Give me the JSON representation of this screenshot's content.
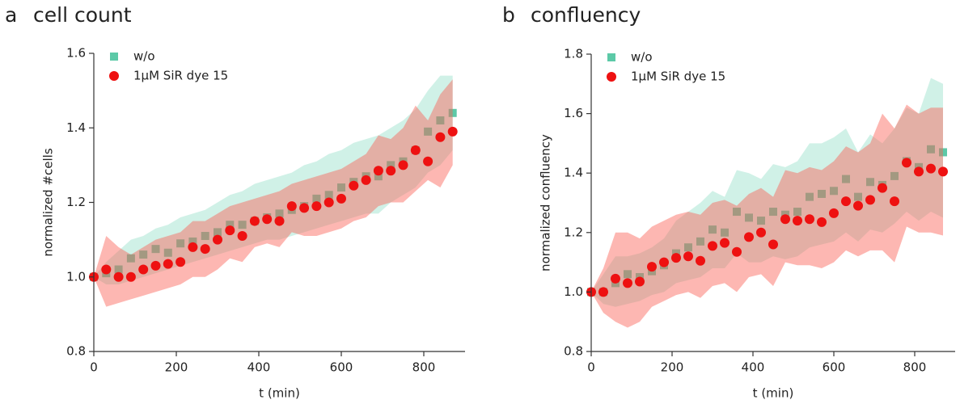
{
  "chart_data": [
    {
      "type": "scatter",
      "label": "a",
      "title": "cell count",
      "xlabel": "t (min)",
      "ylabel": "normalized #cells",
      "xlim": [
        0,
        900
      ],
      "xticks": [
        0,
        200,
        400,
        600,
        800
      ],
      "ylim": [
        0.8,
        1.6
      ],
      "yticks": [
        0.8,
        {
          "value": 1,
          "label": "1.0"
        },
        1.2,
        1.4,
        1.6
      ],
      "legend": "top-left",
      "x": [
        0,
        30,
        60,
        90,
        120,
        150,
        180,
        210,
        240,
        270,
        300,
        330,
        360,
        390,
        420,
        450,
        480,
        510,
        540,
        570,
        600,
        630,
        660,
        690,
        720,
        750,
        780,
        810,
        840,
        870
      ],
      "series": [
        {
          "name": "w/o",
          "marker": "square",
          "color": "#5cc9a7",
          "band_color": "rgba(110,212,180,0.32)",
          "values": [
            1.0,
            1.01,
            1.02,
            1.05,
            1.06,
            1.075,
            1.065,
            1.09,
            1.095,
            1.11,
            1.12,
            1.14,
            1.14,
            1.15,
            1.16,
            1.17,
            1.18,
            1.19,
            1.21,
            1.22,
            1.24,
            1.255,
            1.27,
            1.27,
            1.3,
            1.31,
            1.34,
            1.39,
            1.42,
            1.44
          ],
          "upper": [
            1.0,
            1.04,
            1.07,
            1.1,
            1.11,
            1.13,
            1.14,
            1.16,
            1.17,
            1.18,
            1.2,
            1.22,
            1.23,
            1.25,
            1.26,
            1.27,
            1.28,
            1.3,
            1.31,
            1.33,
            1.34,
            1.36,
            1.37,
            1.38,
            1.4,
            1.42,
            1.45,
            1.5,
            1.54,
            1.54
          ],
          "lower": [
            1.0,
            0.98,
            0.98,
            0.99,
            1.0,
            1.01,
            1.02,
            1.03,
            1.04,
            1.05,
            1.06,
            1.07,
            1.08,
            1.09,
            1.1,
            1.1,
            1.11,
            1.12,
            1.13,
            1.14,
            1.15,
            1.16,
            1.17,
            1.17,
            1.2,
            1.22,
            1.24,
            1.28,
            1.3,
            1.34
          ]
        },
        {
          "name": "1µM SiR dye 15",
          "marker": "circle",
          "color": "#ee1111",
          "band_color": "rgba(250,95,85,0.45)",
          "values": [
            1.0,
            1.02,
            1.0,
            1.0,
            1.02,
            1.03,
            1.035,
            1.04,
            1.08,
            1.075,
            1.1,
            1.125,
            1.11,
            1.15,
            1.155,
            1.15,
            1.19,
            1.185,
            1.19,
            1.2,
            1.21,
            1.245,
            1.26,
            1.285,
            1.285,
            1.3,
            1.34,
            1.31,
            1.375,
            1.39
          ],
          "upper": [
            1.0,
            1.11,
            1.08,
            1.06,
            1.08,
            1.1,
            1.11,
            1.12,
            1.15,
            1.15,
            1.17,
            1.19,
            1.2,
            1.21,
            1.22,
            1.23,
            1.25,
            1.26,
            1.27,
            1.28,
            1.29,
            1.31,
            1.33,
            1.38,
            1.37,
            1.4,
            1.46,
            1.42,
            1.49,
            1.53
          ],
          "lower": [
            1.0,
            0.92,
            0.93,
            0.94,
            0.95,
            0.96,
            0.97,
            0.98,
            1.0,
            1.0,
            1.02,
            1.05,
            1.04,
            1.08,
            1.09,
            1.08,
            1.12,
            1.11,
            1.11,
            1.12,
            1.13,
            1.15,
            1.16,
            1.19,
            1.2,
            1.2,
            1.23,
            1.26,
            1.24,
            1.3
          ]
        }
      ]
    },
    {
      "type": "scatter",
      "label": "b",
      "title": "confluency",
      "xlabel": "t (min)",
      "ylabel": "normalized confluency",
      "xlim": [
        0,
        900
      ],
      "xticks": [
        0,
        200,
        400,
        600,
        800
      ],
      "ylim": [
        0.8,
        1.8
      ],
      "yticks": [
        0.8,
        {
          "value": 1,
          "label": "1.0"
        },
        1.2,
        1.4,
        1.6,
        1.8
      ],
      "legend": "top-left",
      "x": [
        0,
        30,
        60,
        90,
        120,
        150,
        180,
        210,
        240,
        270,
        300,
        330,
        360,
        390,
        420,
        450,
        480,
        510,
        540,
        570,
        600,
        630,
        660,
        690,
        720,
        750,
        780,
        810,
        840,
        870
      ],
      "series": [
        {
          "name": "w/o",
          "marker": "square",
          "color": "#5cc9a7",
          "band_color": "rgba(110,212,180,0.32)",
          "values": [
            1.0,
            1.0,
            1.03,
            1.06,
            1.05,
            1.07,
            1.09,
            1.13,
            1.15,
            1.17,
            1.21,
            1.2,
            1.27,
            1.25,
            1.24,
            1.27,
            1.26,
            1.27,
            1.32,
            1.33,
            1.34,
            1.38,
            1.32,
            1.37,
            1.36,
            1.39,
            1.44,
            1.42,
            1.48,
            1.47
          ],
          "upper": [
            1.0,
            1.06,
            1.12,
            1.12,
            1.13,
            1.15,
            1.18,
            1.24,
            1.27,
            1.3,
            1.34,
            1.32,
            1.41,
            1.4,
            1.38,
            1.43,
            1.42,
            1.44,
            1.5,
            1.5,
            1.52,
            1.55,
            1.47,
            1.53,
            1.5,
            1.55,
            1.62,
            1.6,
            1.72,
            1.7
          ],
          "lower": [
            1.0,
            0.96,
            0.95,
            0.96,
            0.97,
            0.99,
            1.0,
            1.03,
            1.04,
            1.05,
            1.08,
            1.08,
            1.13,
            1.1,
            1.1,
            1.12,
            1.11,
            1.12,
            1.15,
            1.16,
            1.17,
            1.2,
            1.17,
            1.21,
            1.2,
            1.23,
            1.27,
            1.24,
            1.27,
            1.25
          ]
        },
        {
          "name": "1µM SiR dye 15",
          "marker": "circle",
          "color": "#ee1111",
          "band_color": "rgba(250,95,85,0.45)",
          "values": [
            1.0,
            1.0,
            1.045,
            1.03,
            1.035,
            1.085,
            1.1,
            1.115,
            1.12,
            1.105,
            1.155,
            1.165,
            1.135,
            1.185,
            1.2,
            1.16,
            1.245,
            1.24,
            1.245,
            1.235,
            1.265,
            1.305,
            1.29,
            1.31,
            1.35,
            1.305,
            1.435,
            1.405,
            1.415,
            1.405
          ],
          "upper": [
            1.0,
            1.08,
            1.2,
            1.2,
            1.18,
            1.22,
            1.24,
            1.26,
            1.27,
            1.26,
            1.3,
            1.31,
            1.29,
            1.33,
            1.35,
            1.32,
            1.41,
            1.4,
            1.42,
            1.41,
            1.44,
            1.49,
            1.47,
            1.5,
            1.6,
            1.55,
            1.63,
            1.6,
            1.62,
            1.62
          ],
          "lower": [
            1.0,
            0.93,
            0.9,
            0.88,
            0.9,
            0.95,
            0.97,
            0.99,
            1.0,
            0.98,
            1.02,
            1.03,
            1.0,
            1.05,
            1.06,
            1.02,
            1.1,
            1.09,
            1.09,
            1.08,
            1.1,
            1.14,
            1.12,
            1.14,
            1.14,
            1.1,
            1.22,
            1.2,
            1.2,
            1.19
          ]
        }
      ]
    }
  ]
}
